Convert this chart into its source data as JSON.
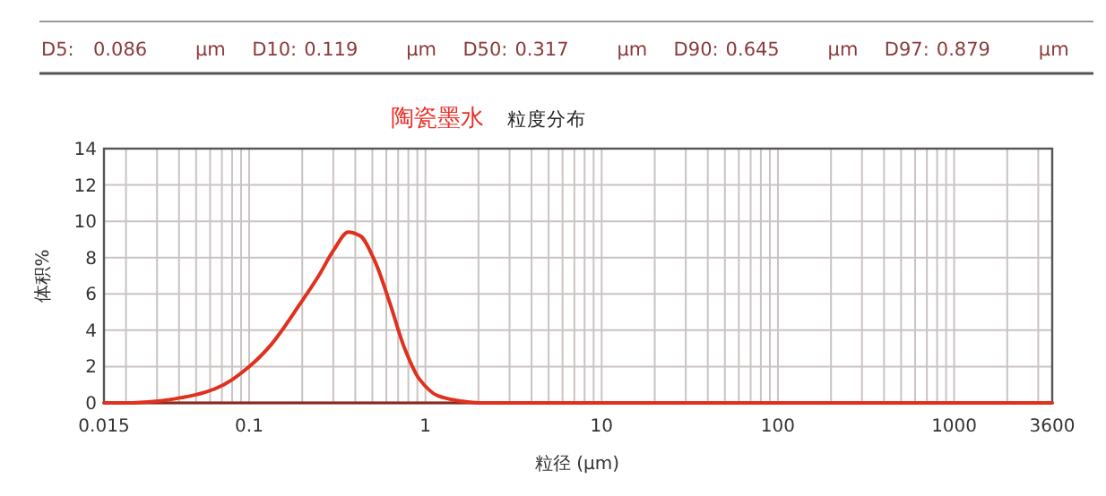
{
  "chart_data": {
    "type": "line",
    "title": "陶瓷墨水",
    "subtitle": "粒度分布",
    "xlabel": "粒径 (μm)",
    "ylabel": "体积%",
    "annotations": [
      "D5:",
      "0.086",
      "μm",
      "D10:",
      "0.119",
      "μm",
      "D50:",
      "0.317",
      "μm",
      "D90:",
      "0.645",
      "μm",
      "D97:",
      "0.879",
      "μm"
    ],
    "log": "x",
    "grid": true,
    "marker": "none",
    "line_style": "solid",
    "xlim": [
      0.015,
      3600
    ],
    "xticks": [
      0.015,
      0.1,
      1,
      10,
      100,
      1000,
      3600
    ],
    "ylim": [
      0,
      14
    ],
    "yticks": [
      0,
      2,
      4,
      6,
      8,
      10,
      12,
      14
    ],
    "series": [
      {
        "color": "#e0301e",
        "x": [
          0.015,
          0.0207,
          0.0305,
          0.0417,
          0.0568,
          0.0717,
          0.1,
          0.133,
          0.196,
          0.248,
          0.301,
          0.365,
          0.426,
          0.517,
          0.628,
          0.762,
          0.925,
          1.17,
          1.59,
          2.01,
          3600
        ],
        "values": [
          0,
          0,
          0.1,
          0.3,
          0.6,
          1.0,
          2.0,
          3.2,
          5.5,
          7.0,
          8.4,
          9.4,
          9.2,
          7.8,
          5.5,
          3.0,
          1.3,
          0.4,
          0.1,
          0,
          0
        ]
      }
    ]
  }
}
